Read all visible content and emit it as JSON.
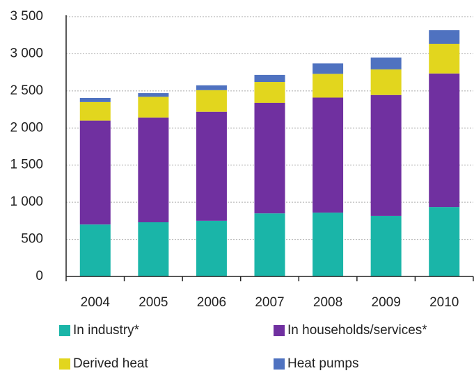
{
  "chart_data": {
    "type": "stacked_bar",
    "categories": [
      "2004",
      "2005",
      "2006",
      "2007",
      "2008",
      "2009",
      "2010"
    ],
    "series": [
      {
        "name": "In industry*",
        "color": "#1ab5a8",
        "values": [
          700,
          730,
          750,
          850,
          860,
          815,
          935
        ]
      },
      {
        "name": "In households/services*",
        "color": "#7030a0",
        "values": [
          1400,
          1410,
          1470,
          1490,
          1550,
          1630,
          1800
        ]
      },
      {
        "name": "Derived heat",
        "color": "#e2d61e",
        "values": [
          250,
          280,
          290,
          280,
          320,
          345,
          400
        ]
      },
      {
        "name": "Heat pumps",
        "color": "#4f72c0",
        "values": [
          55,
          50,
          65,
          95,
          140,
          160,
          185
        ]
      }
    ],
    "ylim": [
      0,
      3500
    ],
    "yticks": [
      0,
      500,
      {
        "value": 1000,
        "label": "1 000"
      },
      {
        "value": 1500,
        "label": "1 500"
      },
      {
        "value": 2000,
        "label": "2 000"
      },
      {
        "value": 2500,
        "label": "2 500"
      },
      {
        "value": 3000,
        "label": "3 000"
      },
      {
        "value": 3500,
        "label": "3 500"
      }
    ],
    "grid": true,
    "legend": "bottom"
  }
}
